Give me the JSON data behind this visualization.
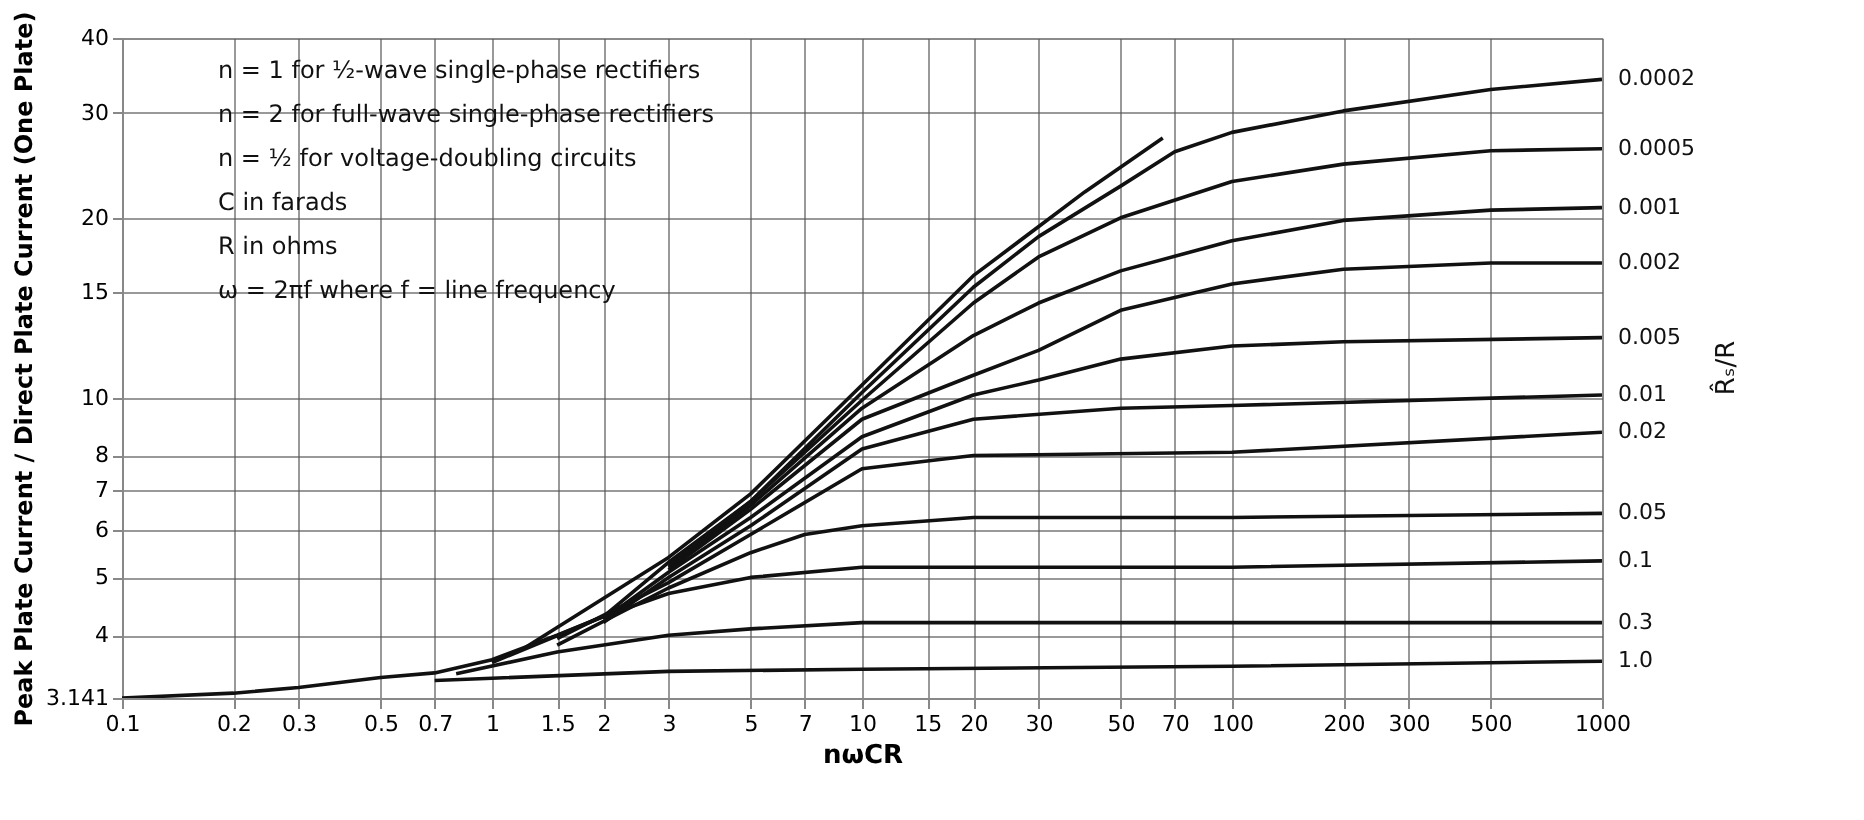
{
  "chart_data": {
    "type": "line",
    "xlabel": "nωCR",
    "ylabel": "Peak Plate Current / Direct Plate Current (One Plate)",
    "y2label": "R̂ₛ/R",
    "annotations": [
      "n = 1 for ½-wave single-phase rectifiers",
      "n = 2 for full-wave single-phase rectifiers",
      "n = ½ for voltage-doubling circuits",
      "C in farads",
      "R in ohms",
      "ω = 2πf where f = line frequency"
    ],
    "log": "xy",
    "grid": true,
    "legend": false,
    "line_style": "solid",
    "xlim": [
      0.1,
      1000
    ],
    "xticks": [
      0.1,
      0.2,
      0.3,
      0.5,
      0.7,
      1,
      1.5,
      2,
      3,
      5,
      7,
      10,
      15,
      20,
      30,
      50,
      70,
      100,
      200,
      300,
      500,
      1000
    ],
    "ylim": [
      3.141,
      40
    ],
    "yticks": [
      3.141,
      4,
      5,
      6,
      7,
      8,
      10,
      15,
      20,
      30,
      40
    ],
    "series": [
      {
        "color": "#111111",
        "x": [
          1.2,
          3,
          5,
          10,
          20,
          40,
          65
        ],
        "values": [
          3.78,
          5.4,
          6.9,
          10.5,
          16.0,
          22.1,
          27.2
        ]
      },
      {
        "name": "0.0002",
        "color": "#111111",
        "x": [
          0.1,
          0.2,
          0.3,
          0.5,
          0.7,
          1,
          1.5,
          2,
          3,
          5,
          10,
          20,
          30,
          50,
          70,
          100,
          200,
          500,
          1000
        ],
        "values": [
          3.141,
          3.2,
          3.27,
          3.4,
          3.46,
          3.64,
          4.0,
          4.3,
          5.3,
          6.7,
          10.2,
          15.3,
          18.6,
          22.6,
          25.8,
          27.8,
          30.2,
          32.8,
          34.1
        ]
      },
      {
        "name": "0.0005",
        "color": "#111111",
        "x": [
          3,
          5,
          10,
          20,
          30,
          50,
          100,
          200,
          500,
          1000
        ],
        "values": [
          5.25,
          6.7,
          9.9,
          14.4,
          17.2,
          20.0,
          23.0,
          24.6,
          25.9,
          26.1
        ]
      },
      {
        "name": "0.001",
        "color": "#111111",
        "x": [
          3,
          5,
          10,
          20,
          30,
          50,
          100,
          200,
          500,
          1000
        ],
        "values": [
          5.2,
          6.6,
          9.6,
          12.7,
          14.4,
          16.3,
          18.3,
          19.8,
          20.6,
          20.8
        ]
      },
      {
        "name": "0.002",
        "color": "#111111",
        "x": [
          3,
          5,
          10,
          20,
          30,
          50,
          100,
          200,
          500,
          1000
        ],
        "values": [
          5.15,
          6.5,
          9.2,
          10.9,
          12.0,
          14.0,
          15.5,
          16.4,
          16.8,
          16.8
        ]
      },
      {
        "name": "0.005",
        "color": "#111111",
        "x": [
          2,
          3,
          5,
          10,
          20,
          30,
          50,
          100,
          200,
          1000
        ],
        "values": [
          4.25,
          5.1,
          6.3,
          8.6,
          10.1,
          10.7,
          11.6,
          12.2,
          12.4,
          12.6
        ]
      },
      {
        "name": "0.01",
        "color": "#111111",
        "x": [
          2,
          3,
          5,
          10,
          20,
          50,
          100,
          1000
        ],
        "values": [
          4.2,
          5.0,
          6.1,
          8.2,
          9.2,
          9.6,
          9.7,
          10.1
        ]
      },
      {
        "name": "0.02",
        "color": "#111111",
        "x": [
          1.5,
          3,
          5,
          10,
          20,
          100,
          1000
        ],
        "values": [
          3.95,
          4.9,
          5.9,
          7.6,
          8.0,
          8.1,
          8.75
        ]
      },
      {
        "name": "0.05",
        "color": "#111111",
        "x": [
          1.5,
          3,
          5,
          7,
          10,
          20,
          100,
          1000
        ],
        "values": [
          3.85,
          4.8,
          5.5,
          5.9,
          6.1,
          6.3,
          6.3,
          6.4
        ]
      },
      {
        "name": "0.1",
        "color": "#111111",
        "x": [
          1,
          2,
          3,
          5,
          10,
          100,
          1000
        ],
        "values": [
          3.6,
          4.3,
          4.7,
          5.0,
          5.2,
          5.2,
          5.33
        ]
      },
      {
        "name": "0.3",
        "color": "#111111",
        "x": [
          0.8,
          1.5,
          3,
          5,
          10,
          100,
          1000
        ],
        "values": [
          3.45,
          3.75,
          4.0,
          4.1,
          4.2,
          4.2,
          4.2
        ]
      },
      {
        "name": "1.0",
        "color": "#111111",
        "x": [
          0.7,
          1,
          3,
          10,
          100,
          1000
        ],
        "values": [
          3.36,
          3.39,
          3.48,
          3.51,
          3.55,
          3.62
        ]
      }
    ]
  }
}
